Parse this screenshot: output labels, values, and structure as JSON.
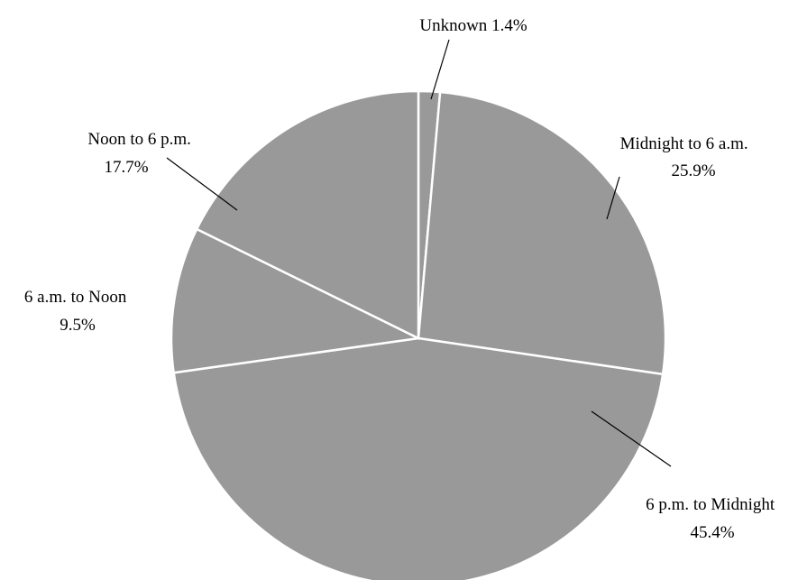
{
  "chart_data": {
    "type": "pie",
    "title": "",
    "series": [
      {
        "categories": [
          "Unknown",
          "Midnight to 6 a.m.",
          "6 p.m. to Midnight",
          "6 a.m. to Noon",
          "Noon to 6 p.m."
        ],
        "values": [
          1.4,
          25.9,
          45.4,
          9.5,
          17.7
        ],
        "value_labels": [
          "1.4%",
          "25.9%",
          "45.4%",
          "9.5%",
          "17.7%"
        ]
      }
    ],
    "unit": "%",
    "start_angle_deg": 0,
    "direction": "clockwise",
    "legend": "none",
    "slice_color": "#999999",
    "slice_border_color": "#ffffff",
    "label_color": "#000000"
  }
}
